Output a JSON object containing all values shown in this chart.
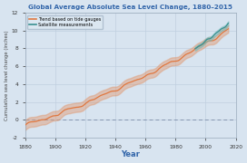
{
  "title": "Global Average Absolute Sea Level Change, 1880–2015",
  "xlabel": "Year",
  "ylabel": "Cumulative sea level change (inches)",
  "xlim": [
    1880,
    2020
  ],
  "ylim": [
    -2,
    12
  ],
  "yticks": [
    -2,
    0,
    2,
    4,
    6,
    8,
    10,
    12
  ],
  "xticks": [
    1880,
    1900,
    1920,
    1940,
    1960,
    1980,
    2000,
    2020
  ],
  "background_color": "#d8e4f0",
  "plot_bg_color": "#d8e4f0",
  "title_color": "#3366aa",
  "xlabel_color": "#3366aa",
  "ylabel_color": "#444444",
  "tide_color": "#e07840",
  "tide_fill_color": "#e09870",
  "satellite_color": "#3a9090",
  "satellite_fill_color": "#70b8b8",
  "legend_labels": [
    "Trend based on tide gauges",
    "Satellite measurements"
  ],
  "zero_line_color": "#6a7a9a",
  "grid_color": "#c0cfe0"
}
